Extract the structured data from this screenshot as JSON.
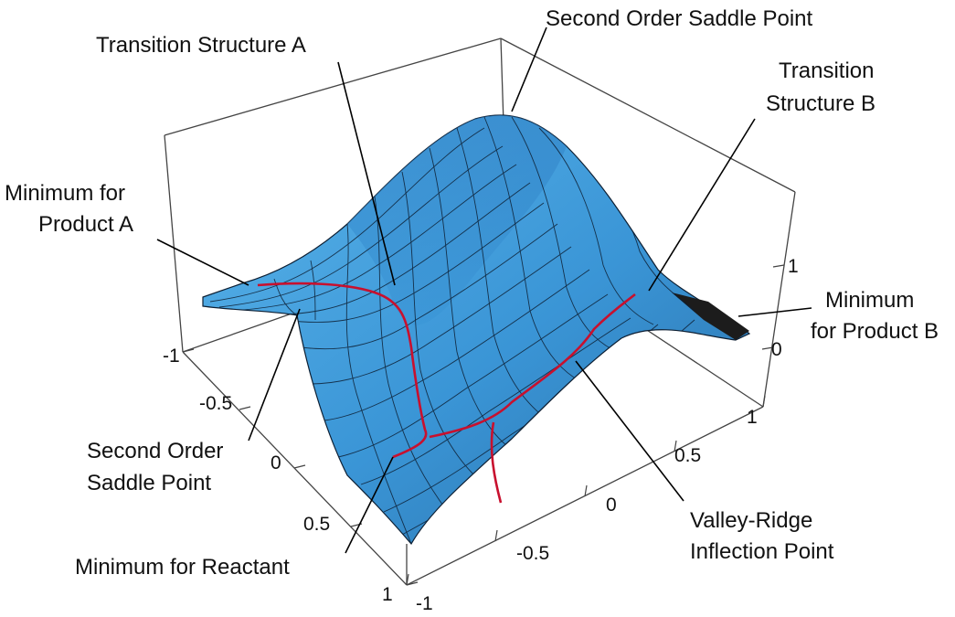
{
  "labels": {
    "ts_a": "Transition Structure A",
    "so_saddle_top": "Second Order Saddle Point",
    "ts_b_line1": "Transition",
    "ts_b_line2": "Structure B",
    "min_prod_a_line1": "Minimum for",
    "min_prod_a_line2": "Product A",
    "min_prod_b_line1": "Minimum",
    "min_prod_b_line2": "for Product B",
    "so_saddle_left_line1": "Second Order",
    "so_saddle_left_line2": "Saddle Point",
    "min_reactant": "Minimum for Reactant",
    "vri_line1": "Valley-Ridge",
    "vri_line2": "Inflection Point"
  },
  "axes": {
    "left_ticks": [
      "-1",
      "-0.5",
      "0",
      "0.5",
      "1"
    ],
    "bottom_ticks": [
      "-1",
      "-0.5",
      "0",
      "0.5",
      "1"
    ],
    "vertical_ticks": [
      "1",
      "0"
    ]
  },
  "colors": {
    "surface_light": "#5ab4ea",
    "surface_mid": "#3a95d6",
    "surface_dark": "#2a6fa8",
    "mesh": "#0d1f33",
    "path": "#c8102e",
    "box": "#444444"
  }
}
